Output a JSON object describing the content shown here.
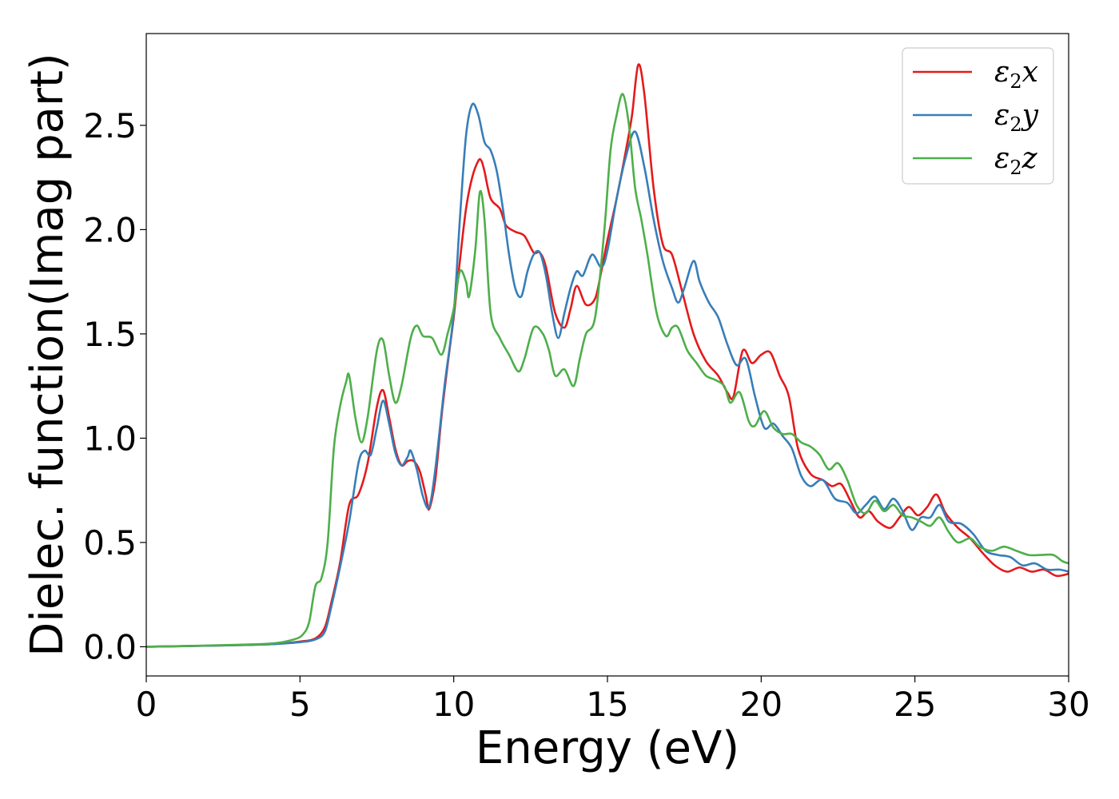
{
  "chart_data": {
    "type": "line",
    "xlabel": "Energy (eV)",
    "ylabel": "Dielec. function(Imag part)",
    "xlim": [
      0,
      30
    ],
    "ylim": [
      -0.14,
      2.94
    ],
    "x_ticks": [
      0,
      5,
      10,
      15,
      20,
      25,
      30
    ],
    "x_tick_labels": [
      "0",
      "5",
      "10",
      "15",
      "20",
      "25",
      "30"
    ],
    "y_ticks": [
      0.0,
      0.5,
      1.0,
      1.5,
      2.0,
      2.5
    ],
    "y_tick_labels": [
      "0.0",
      "0.5",
      "1.0",
      "1.5",
      "2.0",
      "2.5"
    ],
    "grid": false,
    "legend_position": "top-right",
    "series": [
      {
        "name": "ε2x",
        "name_base": "ε",
        "name_sub": "2",
        "name_suffix": "x",
        "color": "#e41a1c",
        "points": [
          [
            0,
            0
          ],
          [
            2,
            0.005
          ],
          [
            4,
            0.012
          ],
          [
            5,
            0.025
          ],
          [
            5.5,
            0.04
          ],
          [
            5.8,
            0.09
          ],
          [
            6.0,
            0.2
          ],
          [
            6.3,
            0.4
          ],
          [
            6.6,
            0.68
          ],
          [
            6.9,
            0.73
          ],
          [
            7.2,
            0.88
          ],
          [
            7.5,
            1.15
          ],
          [
            7.7,
            1.23
          ],
          [
            7.9,
            1.1
          ],
          [
            8.1,
            0.95
          ],
          [
            8.3,
            0.87
          ],
          [
            8.5,
            0.89
          ],
          [
            8.7,
            0.89
          ],
          [
            8.9,
            0.84
          ],
          [
            9.1,
            0.72
          ],
          [
            9.2,
            0.66
          ],
          [
            9.4,
            0.8
          ],
          [
            9.6,
            1.1
          ],
          [
            9.8,
            1.35
          ],
          [
            10.0,
            1.58
          ],
          [
            10.2,
            1.85
          ],
          [
            10.4,
            2.1
          ],
          [
            10.6,
            2.25
          ],
          [
            10.8,
            2.33
          ],
          [
            10.9,
            2.33
          ],
          [
            11.0,
            2.28
          ],
          [
            11.2,
            2.15
          ],
          [
            11.5,
            2.1
          ],
          [
            11.7,
            2.02
          ],
          [
            12.0,
            1.99
          ],
          [
            12.3,
            1.97
          ],
          [
            12.6,
            1.89
          ],
          [
            12.8,
            1.89
          ],
          [
            13.0,
            1.82
          ],
          [
            13.3,
            1.6
          ],
          [
            13.6,
            1.53
          ],
          [
            13.8,
            1.62
          ],
          [
            14.0,
            1.73
          ],
          [
            14.3,
            1.64
          ],
          [
            14.6,
            1.67
          ],
          [
            14.8,
            1.8
          ],
          [
            15.0,
            1.95
          ],
          [
            15.3,
            2.15
          ],
          [
            15.6,
            2.38
          ],
          [
            15.8,
            2.55
          ],
          [
            16.0,
            2.79
          ],
          [
            16.2,
            2.65
          ],
          [
            16.5,
            2.2
          ],
          [
            16.8,
            1.93
          ],
          [
            17.1,
            1.88
          ],
          [
            17.4,
            1.72
          ],
          [
            17.8,
            1.5
          ],
          [
            18.2,
            1.37
          ],
          [
            18.6,
            1.3
          ],
          [
            18.9,
            1.22
          ],
          [
            19.1,
            1.2
          ],
          [
            19.4,
            1.42
          ],
          [
            19.7,
            1.36
          ],
          [
            20.0,
            1.4
          ],
          [
            20.3,
            1.41
          ],
          [
            20.6,
            1.3
          ],
          [
            20.9,
            1.2
          ],
          [
            21.2,
            0.95
          ],
          [
            21.6,
            0.83
          ],
          [
            22.0,
            0.8
          ],
          [
            22.3,
            0.77
          ],
          [
            22.6,
            0.78
          ],
          [
            22.9,
            0.7
          ],
          [
            23.2,
            0.62
          ],
          [
            23.5,
            0.65
          ],
          [
            23.8,
            0.6
          ],
          [
            24.2,
            0.57
          ],
          [
            24.5,
            0.62
          ],
          [
            24.8,
            0.67
          ],
          [
            25.1,
            0.63
          ],
          [
            25.4,
            0.67
          ],
          [
            25.7,
            0.73
          ],
          [
            26.0,
            0.64
          ],
          [
            26.4,
            0.57
          ],
          [
            26.8,
            0.52
          ],
          [
            27.2,
            0.45
          ],
          [
            27.6,
            0.39
          ],
          [
            28.0,
            0.36
          ],
          [
            28.4,
            0.38
          ],
          [
            28.8,
            0.36
          ],
          [
            29.2,
            0.37
          ],
          [
            29.6,
            0.34
          ],
          [
            30.0,
            0.35
          ]
        ]
      },
      {
        "name": "ε2y",
        "name_base": "ε",
        "name_sub": "2",
        "name_suffix": "y",
        "color": "#377eb8",
        "points": [
          [
            0,
            0
          ],
          [
            2,
            0.005
          ],
          [
            4,
            0.012
          ],
          [
            5,
            0.022
          ],
          [
            5.5,
            0.035
          ],
          [
            5.8,
            0.07
          ],
          [
            6.0,
            0.18
          ],
          [
            6.3,
            0.38
          ],
          [
            6.6,
            0.6
          ],
          [
            6.9,
            0.88
          ],
          [
            7.1,
            0.94
          ],
          [
            7.3,
            0.92
          ],
          [
            7.5,
            1.05
          ],
          [
            7.7,
            1.18
          ],
          [
            7.9,
            1.07
          ],
          [
            8.1,
            0.93
          ],
          [
            8.3,
            0.87
          ],
          [
            8.5,
            0.91
          ],
          [
            8.6,
            0.94
          ],
          [
            8.8,
            0.85
          ],
          [
            9.0,
            0.72
          ],
          [
            9.2,
            0.67
          ],
          [
            9.4,
            0.85
          ],
          [
            9.7,
            1.25
          ],
          [
            10.0,
            1.6
          ],
          [
            10.2,
            2.05
          ],
          [
            10.4,
            2.45
          ],
          [
            10.6,
            2.6
          ],
          [
            10.8,
            2.55
          ],
          [
            11.0,
            2.42
          ],
          [
            11.2,
            2.38
          ],
          [
            11.4,
            2.28
          ],
          [
            11.6,
            2.1
          ],
          [
            11.8,
            1.88
          ],
          [
            12.0,
            1.72
          ],
          [
            12.2,
            1.68
          ],
          [
            12.4,
            1.8
          ],
          [
            12.6,
            1.88
          ],
          [
            12.8,
            1.89
          ],
          [
            13.0,
            1.78
          ],
          [
            13.2,
            1.6
          ],
          [
            13.4,
            1.48
          ],
          [
            13.6,
            1.6
          ],
          [
            13.8,
            1.72
          ],
          [
            14.0,
            1.8
          ],
          [
            14.2,
            1.78
          ],
          [
            14.5,
            1.88
          ],
          [
            14.8,
            1.82
          ],
          [
            15.0,
            1.9
          ],
          [
            15.3,
            2.15
          ],
          [
            15.6,
            2.35
          ],
          [
            15.9,
            2.47
          ],
          [
            16.2,
            2.3
          ],
          [
            16.5,
            2.05
          ],
          [
            16.8,
            1.85
          ],
          [
            17.1,
            1.72
          ],
          [
            17.3,
            1.65
          ],
          [
            17.5,
            1.72
          ],
          [
            17.8,
            1.85
          ],
          [
            18.0,
            1.75
          ],
          [
            18.3,
            1.65
          ],
          [
            18.6,
            1.58
          ],
          [
            18.9,
            1.45
          ],
          [
            19.2,
            1.35
          ],
          [
            19.5,
            1.38
          ],
          [
            19.8,
            1.2
          ],
          [
            20.1,
            1.05
          ],
          [
            20.4,
            1.07
          ],
          [
            20.7,
            1.01
          ],
          [
            21.0,
            0.95
          ],
          [
            21.3,
            0.82
          ],
          [
            21.6,
            0.77
          ],
          [
            22.0,
            0.8
          ],
          [
            22.4,
            0.71
          ],
          [
            22.8,
            0.69
          ],
          [
            23.1,
            0.64
          ],
          [
            23.4,
            0.68
          ],
          [
            23.7,
            0.72
          ],
          [
            24.0,
            0.66
          ],
          [
            24.3,
            0.71
          ],
          [
            24.6,
            0.65
          ],
          [
            24.9,
            0.56
          ],
          [
            25.2,
            0.62
          ],
          [
            25.5,
            0.62
          ],
          [
            25.8,
            0.68
          ],
          [
            26.1,
            0.6
          ],
          [
            26.5,
            0.59
          ],
          [
            26.9,
            0.54
          ],
          [
            27.3,
            0.46
          ],
          [
            27.7,
            0.44
          ],
          [
            28.1,
            0.43
          ],
          [
            28.5,
            0.39
          ],
          [
            28.9,
            0.4
          ],
          [
            29.3,
            0.37
          ],
          [
            29.7,
            0.37
          ],
          [
            30.0,
            0.36
          ]
        ]
      },
      {
        "name": "ε2z",
        "name_base": "ε",
        "name_sub": "2",
        "name_suffix": "z",
        "color": "#4daf4a",
        "points": [
          [
            0,
            0
          ],
          [
            2,
            0.006
          ],
          [
            4,
            0.015
          ],
          [
            4.8,
            0.035
          ],
          [
            5.1,
            0.06
          ],
          [
            5.3,
            0.12
          ],
          [
            5.5,
            0.29
          ],
          [
            5.7,
            0.33
          ],
          [
            5.9,
            0.5
          ],
          [
            6.1,
            0.95
          ],
          [
            6.3,
            1.15
          ],
          [
            6.5,
            1.27
          ],
          [
            6.6,
            1.3
          ],
          [
            6.8,
            1.1
          ],
          [
            7.0,
            0.98
          ],
          [
            7.2,
            1.1
          ],
          [
            7.5,
            1.42
          ],
          [
            7.7,
            1.47
          ],
          [
            7.9,
            1.3
          ],
          [
            8.1,
            1.17
          ],
          [
            8.3,
            1.25
          ],
          [
            8.6,
            1.48
          ],
          [
            8.8,
            1.54
          ],
          [
            9.0,
            1.49
          ],
          [
            9.3,
            1.48
          ],
          [
            9.6,
            1.4
          ],
          [
            9.8,
            1.5
          ],
          [
            10.0,
            1.62
          ],
          [
            10.2,
            1.8
          ],
          [
            10.4,
            1.75
          ],
          [
            10.5,
            1.68
          ],
          [
            10.7,
            1.9
          ],
          [
            10.85,
            2.18
          ],
          [
            11.0,
            2.05
          ],
          [
            11.2,
            1.6
          ],
          [
            11.5,
            1.48
          ],
          [
            11.8,
            1.4
          ],
          [
            12.1,
            1.32
          ],
          [
            12.3,
            1.38
          ],
          [
            12.6,
            1.53
          ],
          [
            12.9,
            1.5
          ],
          [
            13.1,
            1.42
          ],
          [
            13.3,
            1.3
          ],
          [
            13.6,
            1.33
          ],
          [
            13.9,
            1.25
          ],
          [
            14.1,
            1.38
          ],
          [
            14.3,
            1.5
          ],
          [
            14.6,
            1.58
          ],
          [
            14.9,
            2.0
          ],
          [
            15.1,
            2.38
          ],
          [
            15.3,
            2.55
          ],
          [
            15.5,
            2.65
          ],
          [
            15.7,
            2.5
          ],
          [
            15.9,
            2.2
          ],
          [
            16.1,
            2.05
          ],
          [
            16.3,
            1.88
          ],
          [
            16.6,
            1.6
          ],
          [
            16.9,
            1.49
          ],
          [
            17.1,
            1.53
          ],
          [
            17.3,
            1.53
          ],
          [
            17.6,
            1.42
          ],
          [
            17.9,
            1.36
          ],
          [
            18.2,
            1.3
          ],
          [
            18.5,
            1.28
          ],
          [
            18.8,
            1.25
          ],
          [
            19.0,
            1.17
          ],
          [
            19.3,
            1.22
          ],
          [
            19.6,
            1.08
          ],
          [
            19.8,
            1.06
          ],
          [
            20.1,
            1.13
          ],
          [
            20.4,
            1.05
          ],
          [
            20.7,
            1.02
          ],
          [
            21.0,
            1.02
          ],
          [
            21.3,
            0.98
          ],
          [
            21.6,
            0.96
          ],
          [
            21.9,
            0.92
          ],
          [
            22.2,
            0.85
          ],
          [
            22.5,
            0.88
          ],
          [
            22.8,
            0.8
          ],
          [
            23.1,
            0.68
          ],
          [
            23.4,
            0.64
          ],
          [
            23.7,
            0.7
          ],
          [
            24.0,
            0.65
          ],
          [
            24.3,
            0.68
          ],
          [
            24.6,
            0.63
          ],
          [
            24.9,
            0.62
          ],
          [
            25.2,
            0.6
          ],
          [
            25.5,
            0.58
          ],
          [
            25.8,
            0.62
          ],
          [
            26.1,
            0.55
          ],
          [
            26.4,
            0.5
          ],
          [
            26.8,
            0.52
          ],
          [
            27.1,
            0.48
          ],
          [
            27.5,
            0.46
          ],
          [
            27.9,
            0.48
          ],
          [
            28.3,
            0.46
          ],
          [
            28.7,
            0.44
          ],
          [
            29.1,
            0.44
          ],
          [
            29.5,
            0.44
          ],
          [
            29.8,
            0.41
          ],
          [
            30.0,
            0.4
          ]
        ]
      }
    ]
  }
}
